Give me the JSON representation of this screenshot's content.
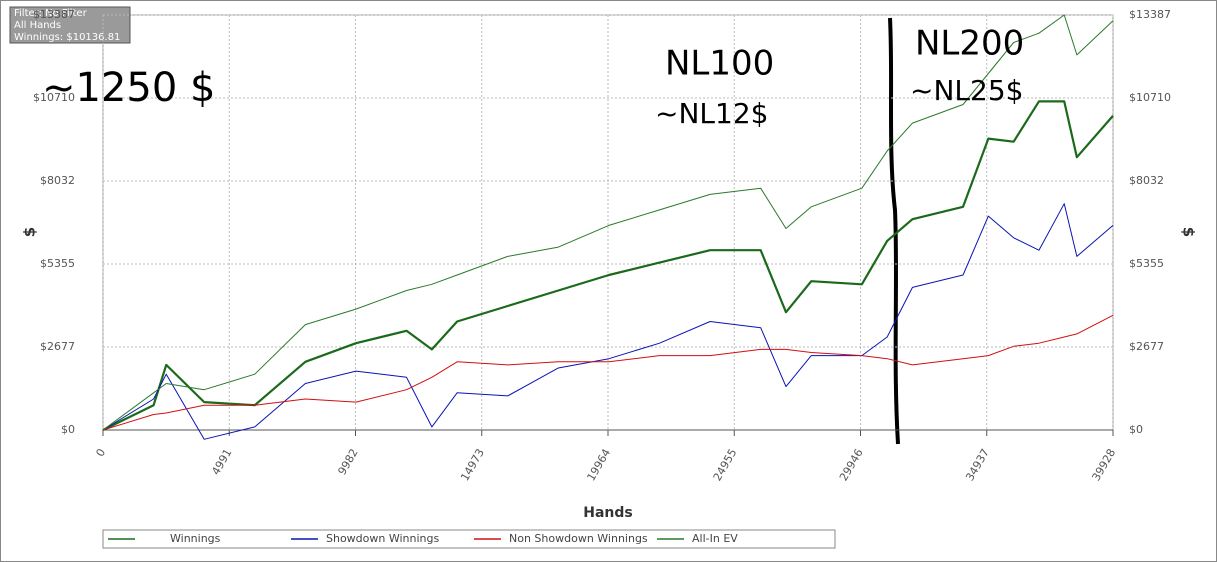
{
  "chart_data": {
    "type": "line",
    "info_box": [
      "Filter: No Filter",
      "All Hands",
      "Winnings: $10136.81"
    ],
    "annotations": [
      "~1250 $",
      "NL100",
      "~NL12$",
      "NL200",
      "~NL25$"
    ],
    "xlabel": "Hands",
    "ylabel": "$",
    "y2label": "$",
    "x": [
      0,
      2000,
      2500,
      4000,
      6000,
      8000,
      10000,
      12000,
      13000,
      14000,
      16000,
      18000,
      20000,
      22000,
      24000,
      26000,
      27000,
      28000,
      30000,
      31000,
      32000,
      34000,
      35000,
      36000,
      37000,
      38000,
      38500,
      39928
    ],
    "series": [
      {
        "name": "Winnings",
        "color": "#1b6a1b",
        "values": [
          0,
          800,
          2100,
          900,
          800,
          2200,
          2800,
          3200,
          2600,
          3500,
          4000,
          4500,
          5000,
          5400,
          5800,
          5800,
          3800,
          4800,
          4700,
          6100,
          6800,
          7200,
          9400,
          9300,
          10600,
          10600,
          8800,
          10137
        ]
      },
      {
        "name": "Showdown Winnings",
        "color": "#0a14b4",
        "values": [
          0,
          1000,
          1800,
          -300,
          100,
          1500,
          1900,
          1700,
          100,
          1200,
          1100,
          2000,
          2300,
          2800,
          3500,
          3300,
          1400,
          2400,
          2400,
          3000,
          4600,
          5000,
          6900,
          6200,
          5800,
          7300,
          5600,
          6600
        ]
      },
      {
        "name": "Non Showdown Winnings",
        "color": "#d01010",
        "values": [
          0,
          500,
          550,
          800,
          800,
          1000,
          900,
          1300,
          1700,
          2200,
          2100,
          2200,
          2200,
          2400,
          2400,
          2600,
          2600,
          2500,
          2400,
          2300,
          2100,
          2300,
          2400,
          2700,
          2800,
          3000,
          3100,
          3700
        ]
      },
      {
        "name": "All-In EV",
        "color": "#2a7a2a",
        "values": [
          0,
          1200,
          1500,
          1300,
          1800,
          3400,
          3900,
          4500,
          4700,
          5000,
          5600,
          5900,
          6600,
          7100,
          7600,
          7800,
          6500,
          7200,
          7800,
          9000,
          9900,
          10500,
          11500,
          12500,
          12800,
          13387,
          12100,
          13200
        ]
      }
    ],
    "xlim": [
      0,
      39928
    ],
    "xticks": [
      0,
      4991,
      9982,
      14973,
      19964,
      24955,
      29946,
      34937,
      39928
    ],
    "ylim": [
      0,
      13387
    ],
    "yticks": [
      {
        "value": 0,
        "label": "$0"
      },
      {
        "value": 2677,
        "label": "$2677"
      },
      {
        "value": 5355,
        "label": "$5355"
      },
      {
        "value": 8032,
        "label": "$8032"
      },
      {
        "value": 10710,
        "label": "$10710"
      },
      {
        "value": 13387,
        "label": "$13387"
      }
    ],
    "grid": true
  }
}
